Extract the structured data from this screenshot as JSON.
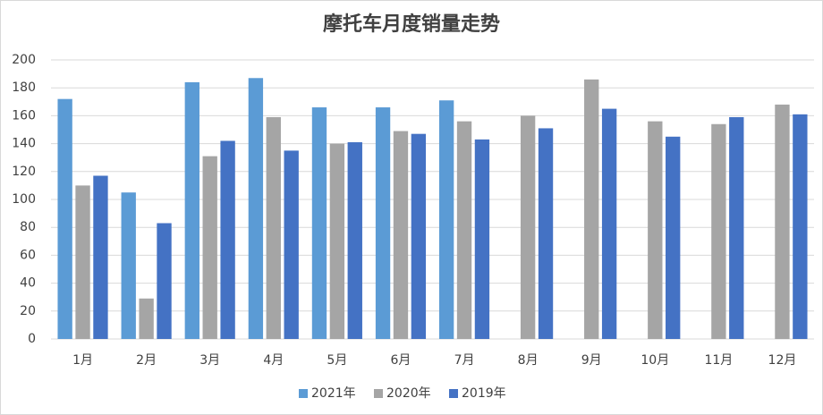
{
  "chart_data": {
    "type": "bar",
    "title": "摩托车月度销量走势",
    "categories": [
      "1月",
      "2月",
      "3月",
      "4月",
      "5月",
      "6月",
      "7月",
      "8月",
      "9月",
      "10月",
      "11月",
      "12月"
    ],
    "series": [
      {
        "name": "2021年",
        "color": "#5b9bd5",
        "values": [
          172,
          105,
          184,
          187,
          166,
          166,
          171,
          null,
          null,
          null,
          null,
          null
        ]
      },
      {
        "name": "2020年",
        "color": "#a5a5a5",
        "values": [
          110,
          29,
          131,
          159,
          140,
          149,
          156,
          160,
          186,
          156,
          154,
          168
        ]
      },
      {
        "name": "2019年",
        "color": "#4472c4",
        "values": [
          117,
          83,
          142,
          135,
          141,
          147,
          143,
          151,
          165,
          145,
          159,
          161
        ]
      }
    ],
    "ylim": [
      0,
      200
    ],
    "yticks": [
      0,
      20,
      40,
      60,
      80,
      100,
      120,
      140,
      160,
      180,
      200
    ],
    "grid": true,
    "legend": "bottom"
  }
}
